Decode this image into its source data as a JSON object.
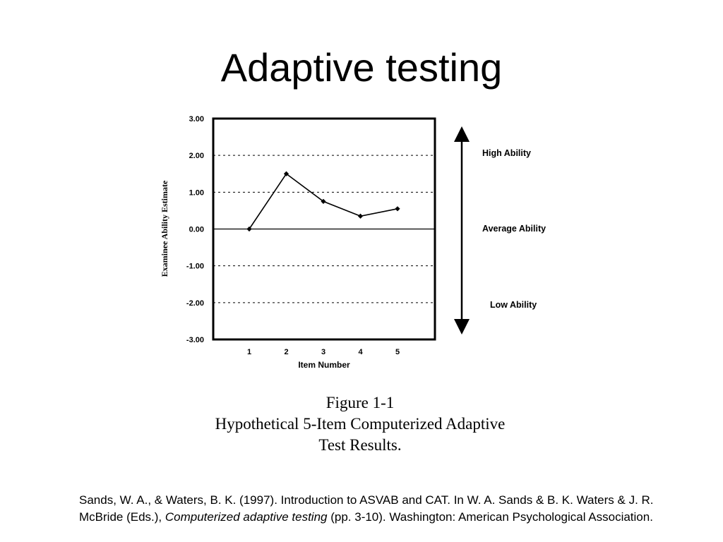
{
  "slide": {
    "title": "Adaptive testing"
  },
  "figure": {
    "caption_line1": "Figure 1-1",
    "caption_line2": "Hypothetical 5-Item Computerized Adaptive",
    "caption_line3": "Test Results."
  },
  "ability_labels": {
    "high": "High Ability",
    "average": "Average Ability",
    "low": "Low Ability"
  },
  "citation": {
    "part1": "Sands, W. A., & Waters, B. K. (1997). Introduction to ASVAB and CAT. In W. A. Sands & B. K. Waters & J. R. McBride (Eds.), ",
    "italic": "Computerized adaptive testing",
    "part2": " (pp. 3-10). Washington: American Psychological Association."
  },
  "chart_data": {
    "type": "line",
    "title": "",
    "xlabel": "Item Number",
    "ylabel": "Examinee Ability Estimate",
    "x": [
      1,
      2,
      3,
      4,
      5
    ],
    "x_tick_labels": [
      "1",
      "2",
      "3",
      "4",
      "5"
    ],
    "y_tick_labels": [
      "3.00",
      "2.00",
      "1.00",
      "0.00",
      "-1.00",
      "-2.00",
      "-3.00"
    ],
    "y_ticks": [
      3,
      2,
      1,
      0,
      -1,
      -2,
      -3
    ],
    "xlim": [
      0,
      6
    ],
    "ylim": [
      -3,
      3
    ],
    "grid": "dashed horizontal lines at each y tick, solid line at 0",
    "series": [
      {
        "values": [
          0.0,
          1.5,
          0.75,
          0.35,
          0.55
        ]
      }
    ]
  }
}
